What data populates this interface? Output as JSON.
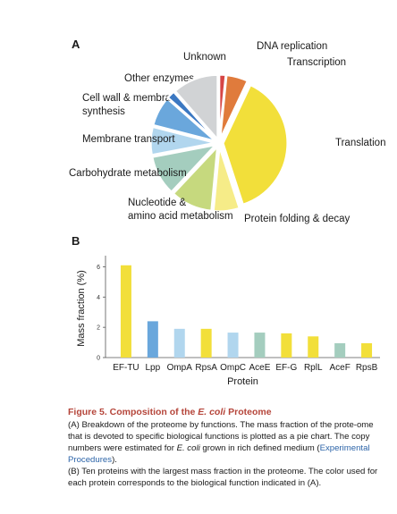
{
  "panel_a": {
    "letter": "A"
  },
  "panel_b": {
    "letter": "B"
  },
  "chart_data": [
    {
      "type": "pie",
      "slices": [
        {
          "label": "DNA replication",
          "value": 1.6,
          "color": "#d64545"
        },
        {
          "label": "Transcription",
          "value": 5.4,
          "color": "#e07b3c"
        },
        {
          "label": "Translation",
          "value": 38.0,
          "color": "#f2df3a"
        },
        {
          "label": "Protein folding & decay",
          "value": 6.5,
          "color": "#f6ec88"
        },
        {
          "label": "Nucleotide & amino acid metabolism",
          "value": 10.5,
          "color": "#c6d97e"
        },
        {
          "label": "Carbohydrate metabolism",
          "value": 10.0,
          "color": "#a4cdbe"
        },
        {
          "label": "Membrane transport",
          "value": 7.0,
          "color": "#b1d6ee"
        },
        {
          "label": "Cell wall & membrane synthesis",
          "value": 7.5,
          "color": "#6aa7dc"
        },
        {
          "label": "Other enzymes",
          "value": 2.0,
          "color": "#3b78c2"
        },
        {
          "label": "Unknown",
          "value": 11.5,
          "color": "#d1d3d5"
        }
      ]
    },
    {
      "type": "bar",
      "ylabel": "Mass fraction (%)",
      "xlabel": "Protein",
      "ylim": [
        0,
        6.5
      ],
      "yticks": [
        0,
        2,
        4,
        6
      ],
      "grid": false,
      "categories": [
        "EF-TU",
        "Lpp",
        "OmpA",
        "RpsA",
        "OmpC",
        "AceE",
        "EF-G",
        "RplL",
        "AceF",
        "RpsB"
      ],
      "values": [
        6.1,
        2.4,
        1.9,
        1.9,
        1.65,
        1.65,
        1.6,
        1.4,
        0.95,
        0.95
      ],
      "colors": [
        "#f2df3a",
        "#6aa7dc",
        "#b1d6ee",
        "#f2df3a",
        "#b1d6ee",
        "#a4cdbe",
        "#f2df3a",
        "#f2df3a",
        "#a4cdbe",
        "#f2df3a"
      ]
    }
  ],
  "caption": {
    "title_pre": "Figure 5.  Composition of the ",
    "title_italic": "E. coli",
    "title_post": " Proteome",
    "para_a_1": "(A) Breakdown of the proteome by functions. The mass fraction of the prote-ome that is devoted to specific biological functions is plotted as a pie chart. The copy numbers were estimated for ",
    "para_a_italic": "E. coli",
    "para_a_2": " grown in rich defined medium (",
    "para_a_link": "Experimental Procedures",
    "para_a_3": ").",
    "para_b": "(B) Ten proteins with the largest mass fraction in the proteome. The color used for each protein corresponds to the biological function indicated in (A)."
  }
}
